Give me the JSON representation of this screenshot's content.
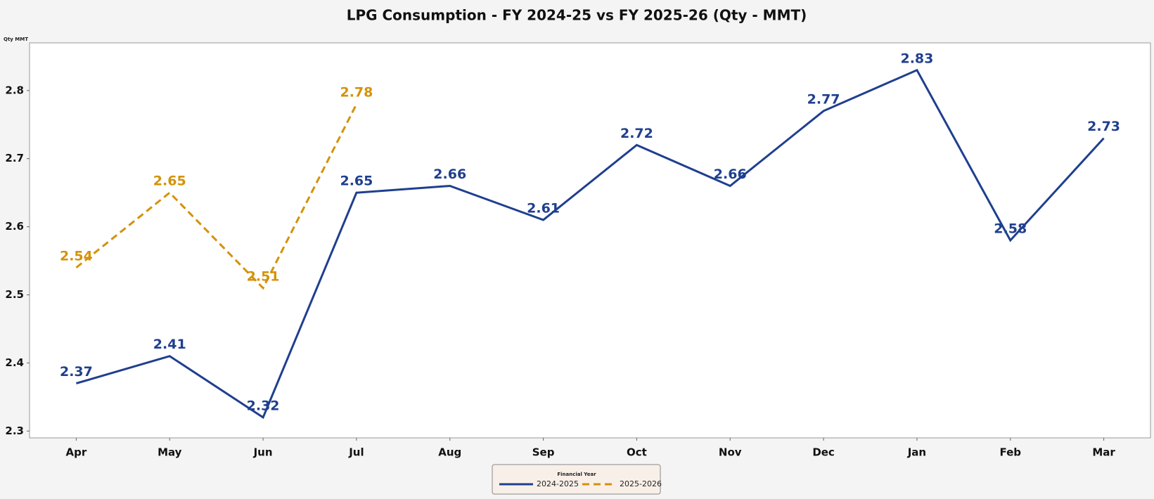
{
  "chart_data": {
    "type": "line",
    "title": "LPG Consumption - FY 2024-25 vs FY 2025-26 (Qty - MMT)",
    "y_label": "Qty MMT",
    "legend_title": "Financial Year",
    "categories": [
      "Apr",
      "May",
      "Jun",
      "Jul",
      "Aug",
      "Sep",
      "Oct",
      "Nov",
      "Dec",
      "Jan",
      "Feb",
      "Mar"
    ],
    "series": [
      {
        "name": "2024-2025",
        "color": "#1f3f8f",
        "dashed": false,
        "values": [
          2.37,
          2.41,
          2.32,
          2.65,
          2.66,
          2.61,
          2.72,
          2.66,
          2.77,
          2.83,
          2.58,
          2.73
        ]
      },
      {
        "name": "2025-2026",
        "color": "#d4920a",
        "dashed": true,
        "values": [
          2.54,
          2.65,
          2.51,
          2.78,
          null,
          null,
          null,
          null,
          null,
          null,
          null,
          null
        ]
      }
    ],
    "ylim": [
      2.29,
      2.87
    ],
    "yticks": [
      2.3,
      2.4,
      2.5,
      2.6,
      2.7,
      2.8
    ],
    "grid": false,
    "legend": "bottom"
  }
}
